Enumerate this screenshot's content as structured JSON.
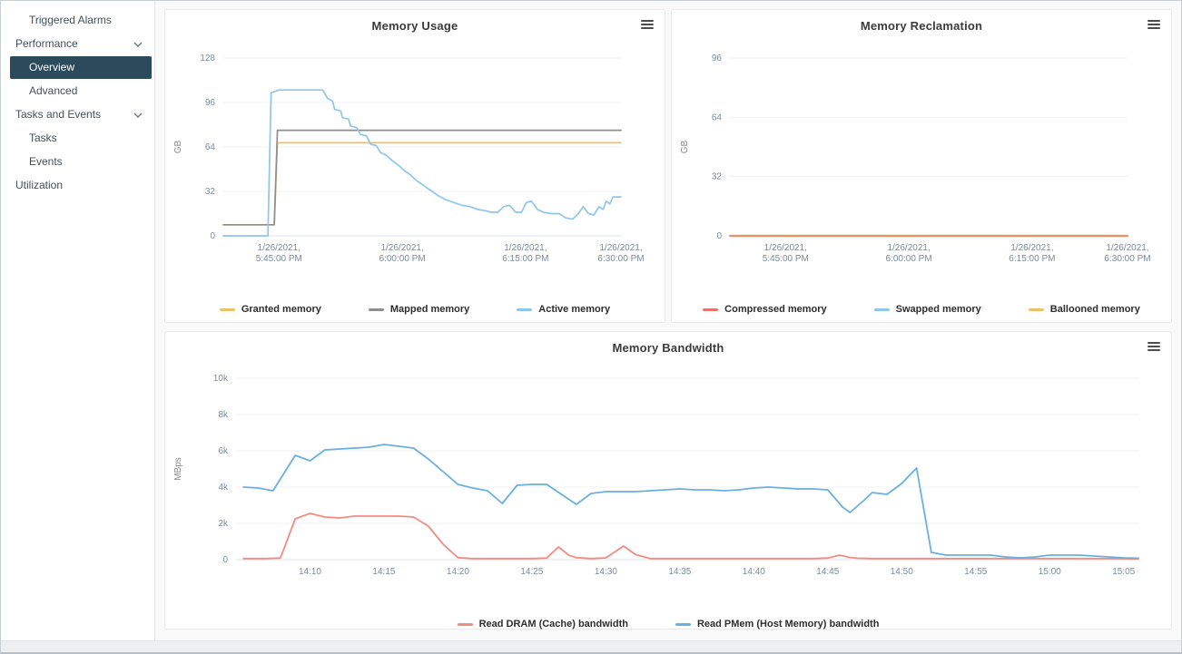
{
  "sidebar": {
    "items": [
      {
        "label": "Triggered Alarms",
        "indent": 1,
        "selected": false,
        "chevron": false
      },
      {
        "label": "Performance",
        "indent": 0,
        "selected": false,
        "chevron": true
      },
      {
        "label": "Overview",
        "indent": 1,
        "selected": true,
        "chevron": false
      },
      {
        "label": "Advanced",
        "indent": 1,
        "selected": false,
        "chevron": false
      },
      {
        "label": "Tasks and Events",
        "indent": 0,
        "selected": false,
        "chevron": true
      },
      {
        "label": "Tasks",
        "indent": 1,
        "selected": false,
        "chevron": false
      },
      {
        "label": "Events",
        "indent": 1,
        "selected": false,
        "chevron": false
      },
      {
        "label": "Utilization",
        "indent": 0,
        "selected": false,
        "chevron": false
      }
    ]
  },
  "colors": {
    "selected_nav_bg": "#2b4a5c",
    "granted_memory": "#edc066",
    "mapped_memory": "#8e8e8e",
    "active_memory": "#8fc6ed",
    "compressed_memory": "#e8756b",
    "swapped_memory": "#8fc6ed",
    "ballooned_memory": "#edc066",
    "dram_bandwidth": "#ef8d83",
    "pmem_bandwidth": "#6aafe0",
    "grid_line": "#f1f1f1",
    "baseline": "#dce3ea",
    "tick_text": "#7b8b9d"
  },
  "chart_data": [
    {
      "name": "memory-usage",
      "type": "line",
      "title": "Memory Usage",
      "xlabel": "",
      "ylabel": "GB",
      "ylim": [
        0,
        128
      ],
      "xlim": [
        0,
        1
      ],
      "grid": true,
      "legend_position": "bottom",
      "yticks": [
        {
          "v": 0,
          "label": "0"
        },
        {
          "v": 32,
          "label": "32"
        },
        {
          "v": 64,
          "label": "64"
        },
        {
          "v": 96,
          "label": "96"
        },
        {
          "v": 128,
          "label": "128"
        }
      ],
      "xticks": [
        {
          "pos": 0.14,
          "lines": [
            "1/26/2021,",
            "5:45:00 PM"
          ]
        },
        {
          "pos": 0.45,
          "lines": [
            "1/26/2021,",
            "6:00:00 PM"
          ]
        },
        {
          "pos": 0.76,
          "lines": [
            "1/26/2021,",
            "6:15:00 PM"
          ]
        },
        {
          "pos": 1.0,
          "lines": [
            "1/26/2021,",
            "6:30:00 PM"
          ]
        }
      ],
      "draw_order": [
        0,
        1,
        2
      ],
      "series": [
        {
          "name": "Granted memory",
          "color": "#edc066",
          "points": [
            [
              0,
              8
            ],
            [
              0.128,
              8
            ],
            [
              0.136,
              67
            ],
            [
              1,
              67
            ]
          ]
        },
        {
          "name": "Mapped memory",
          "color": "#8e8e8e",
          "points": [
            [
              0,
              8
            ],
            [
              0.128,
              8
            ],
            [
              0.136,
              76
            ],
            [
              1,
              76
            ]
          ]
        },
        {
          "name": "Active memory",
          "color": "#8fc6ed",
          "points": [
            [
              0,
              0
            ],
            [
              0.112,
              0
            ],
            [
              0.12,
              103
            ],
            [
              0.14,
              105
            ],
            [
              0.25,
              105
            ],
            [
              0.262,
              99
            ],
            [
              0.275,
              97
            ],
            [
              0.28,
              91
            ],
            [
              0.295,
              90
            ],
            [
              0.3,
              85
            ],
            [
              0.315,
              84
            ],
            [
              0.32,
              79
            ],
            [
              0.335,
              78
            ],
            [
              0.345,
              73
            ],
            [
              0.36,
              72
            ],
            [
              0.37,
              66
            ],
            [
              0.385,
              65
            ],
            [
              0.395,
              60
            ],
            [
              0.41,
              58
            ],
            [
              0.425,
              54
            ],
            [
              0.44,
              51
            ],
            [
              0.455,
              47
            ],
            [
              0.47,
              44
            ],
            [
              0.485,
              40
            ],
            [
              0.5,
              37
            ],
            [
              0.52,
              33
            ],
            [
              0.54,
              29
            ],
            [
              0.56,
              26
            ],
            [
              0.58,
              24
            ],
            [
              0.6,
              22
            ],
            [
              0.62,
              21
            ],
            [
              0.64,
              19
            ],
            [
              0.66,
              18
            ],
            [
              0.675,
              17
            ],
            [
              0.69,
              17
            ],
            [
              0.705,
              21
            ],
            [
              0.72,
              22
            ],
            [
              0.735,
              17
            ],
            [
              0.75,
              17
            ],
            [
              0.762,
              24
            ],
            [
              0.775,
              25
            ],
            [
              0.79,
              19
            ],
            [
              0.805,
              17
            ],
            [
              0.825,
              16
            ],
            [
              0.845,
              16
            ],
            [
              0.86,
              13
            ],
            [
              0.878,
              12
            ],
            [
              0.893,
              16
            ],
            [
              0.905,
              21
            ],
            [
              0.918,
              16
            ],
            [
              0.932,
              15
            ],
            [
              0.945,
              21
            ],
            [
              0.955,
              19
            ],
            [
              0.963,
              25
            ],
            [
              0.972,
              23
            ],
            [
              0.98,
              28
            ],
            [
              1,
              28
            ]
          ]
        }
      ]
    },
    {
      "name": "memory-reclamation",
      "type": "line",
      "title": "Memory Reclamation",
      "xlabel": "",
      "ylabel": "GB",
      "ylim": [
        0,
        96
      ],
      "xlim": [
        0,
        1
      ],
      "grid": true,
      "legend_position": "bottom",
      "yticks": [
        {
          "v": 0,
          "label": "0"
        },
        {
          "v": 32,
          "label": "32"
        },
        {
          "v": 64,
          "label": "64"
        },
        {
          "v": 96,
          "label": "96"
        }
      ],
      "xticks": [
        {
          "pos": 0.14,
          "lines": [
            "1/26/2021,",
            "5:45:00 PM"
          ]
        },
        {
          "pos": 0.45,
          "lines": [
            "1/26/2021,",
            "6:00:00 PM"
          ]
        },
        {
          "pos": 0.76,
          "lines": [
            "1/26/2021,",
            "6:15:00 PM"
          ]
        },
        {
          "pos": 1.0,
          "lines": [
            "1/26/2021,",
            "6:30:00 PM"
          ]
        }
      ],
      "draw_order": [
        1,
        2,
        0
      ],
      "series": [
        {
          "name": "Compressed memory",
          "color": "#e8756b",
          "points": [
            [
              0,
              0
            ],
            [
              1,
              0
            ]
          ]
        },
        {
          "name": "Swapped memory",
          "color": "#8fc6ed",
          "points": [
            [
              0,
              0
            ],
            [
              1,
              0
            ]
          ]
        },
        {
          "name": "Ballooned memory",
          "color": "#edc066",
          "points": [
            [
              0,
              0
            ],
            [
              1,
              0
            ]
          ]
        }
      ]
    },
    {
      "name": "memory-bandwidth",
      "type": "line",
      "title": "Memory Bandwidth",
      "xlabel": "",
      "ylabel": "MBps",
      "ylim": [
        0,
        10000
      ],
      "xlim": [
        0,
        61
      ],
      "grid": true,
      "legend_position": "bottom",
      "yticks": [
        {
          "v": 0,
          "label": "0"
        },
        {
          "v": 2000,
          "label": "2k"
        },
        {
          "v": 4000,
          "label": "4k"
        },
        {
          "v": 6000,
          "label": "6k"
        },
        {
          "v": 8000,
          "label": "8k"
        },
        {
          "v": 10000,
          "label": "10k"
        }
      ],
      "xticks": [
        {
          "pos": 5,
          "lines": [
            "14:10"
          ]
        },
        {
          "pos": 10,
          "lines": [
            "14:15"
          ]
        },
        {
          "pos": 15,
          "lines": [
            "14:20"
          ]
        },
        {
          "pos": 20,
          "lines": [
            "14:25"
          ]
        },
        {
          "pos": 25,
          "lines": [
            "14:30"
          ]
        },
        {
          "pos": 30,
          "lines": [
            "14:35"
          ]
        },
        {
          "pos": 35,
          "lines": [
            "14:40"
          ]
        },
        {
          "pos": 40,
          "lines": [
            "14:45"
          ]
        },
        {
          "pos": 45,
          "lines": [
            "14:50"
          ]
        },
        {
          "pos": 50,
          "lines": [
            "14:55"
          ]
        },
        {
          "pos": 55,
          "lines": [
            "15:00"
          ]
        },
        {
          "pos": 60,
          "lines": [
            "15:05"
          ]
        }
      ],
      "draw_order": [
        0,
        1
      ],
      "series": [
        {
          "name": "Read DRAM (Cache) bandwidth",
          "color": "#ef8d83",
          "points": [
            [
              0.5,
              60
            ],
            [
              2,
              60
            ],
            [
              3,
              90
            ],
            [
              4,
              2250
            ],
            [
              5,
              2550
            ],
            [
              6,
              2350
            ],
            [
              7,
              2300
            ],
            [
              8,
              2400
            ],
            [
              9,
              2400
            ],
            [
              10,
              2400
            ],
            [
              11,
              2400
            ],
            [
              12,
              2350
            ],
            [
              13,
              1850
            ],
            [
              14,
              850
            ],
            [
              15,
              110
            ],
            [
              16,
              60
            ],
            [
              17,
              60
            ],
            [
              18,
              60
            ],
            [
              19,
              60
            ],
            [
              20,
              60
            ],
            [
              21,
              90
            ],
            [
              21.8,
              700
            ],
            [
              22.5,
              240
            ],
            [
              23,
              110
            ],
            [
              24,
              60
            ],
            [
              25,
              100
            ],
            [
              26.2,
              750
            ],
            [
              27,
              280
            ],
            [
              28,
              60
            ],
            [
              29,
              60
            ],
            [
              30,
              60
            ],
            [
              31,
              60
            ],
            [
              32,
              60
            ],
            [
              33,
              60
            ],
            [
              34,
              60
            ],
            [
              35,
              60
            ],
            [
              36,
              60
            ],
            [
              37,
              60
            ],
            [
              38,
              60
            ],
            [
              39,
              60
            ],
            [
              40,
              90
            ],
            [
              40.8,
              250
            ],
            [
              41.5,
              120
            ],
            [
              42,
              80
            ],
            [
              43,
              60
            ],
            [
              44,
              60
            ],
            [
              45,
              60
            ],
            [
              46,
              60
            ],
            [
              47,
              60
            ],
            [
              48,
              60
            ],
            [
              49,
              60
            ],
            [
              50,
              60
            ],
            [
              51,
              60
            ],
            [
              52,
              60
            ],
            [
              53,
              60
            ],
            [
              54,
              60
            ],
            [
              55,
              60
            ],
            [
              56,
              60
            ],
            [
              57,
              60
            ],
            [
              58,
              60
            ],
            [
              59,
              60
            ],
            [
              60,
              50
            ],
            [
              61,
              40
            ]
          ]
        },
        {
          "name": "Read PMem (Host Memory) bandwidth",
          "color": "#6aafe0",
          "points": [
            [
              0.5,
              4000
            ],
            [
              1.5,
              3950
            ],
            [
              2.5,
              3800
            ],
            [
              4,
              5750
            ],
            [
              5,
              5450
            ],
            [
              6,
              6050
            ],
            [
              7,
              6100
            ],
            [
              8,
              6150
            ],
            [
              9,
              6200
            ],
            [
              10,
              6350
            ],
            [
              11,
              6250
            ],
            [
              12,
              6150
            ],
            [
              13,
              5550
            ],
            [
              14,
              4850
            ],
            [
              15,
              4150
            ],
            [
              16,
              3950
            ],
            [
              17,
              3800
            ],
            [
              18,
              3100
            ],
            [
              19,
              4100
            ],
            [
              20,
              4150
            ],
            [
              21,
              4150
            ],
            [
              22,
              3600
            ],
            [
              23,
              3050
            ],
            [
              24,
              3650
            ],
            [
              25,
              3750
            ],
            [
              26,
              3750
            ],
            [
              27,
              3750
            ],
            [
              28,
              3800
            ],
            [
              29,
              3850
            ],
            [
              30,
              3900
            ],
            [
              31,
              3850
            ],
            [
              32,
              3850
            ],
            [
              33,
              3800
            ],
            [
              34,
              3850
            ],
            [
              35,
              3950
            ],
            [
              36,
              4000
            ],
            [
              37,
              3950
            ],
            [
              38,
              3900
            ],
            [
              39,
              3900
            ],
            [
              40,
              3850
            ],
            [
              41,
              2900
            ],
            [
              41.5,
              2600
            ],
            [
              42.5,
              3300
            ],
            [
              43,
              3700
            ],
            [
              44,
              3600
            ],
            [
              45,
              4200
            ],
            [
              46,
              5050
            ],
            [
              47,
              400
            ],
            [
              48,
              250
            ],
            [
              49,
              250
            ],
            [
              50,
              250
            ],
            [
              51,
              250
            ],
            [
              52,
              150
            ],
            [
              53,
              100
            ],
            [
              54,
              150
            ],
            [
              55,
              250
            ],
            [
              56,
              250
            ],
            [
              57,
              250
            ],
            [
              58,
              200
            ],
            [
              59,
              150
            ],
            [
              60,
              100
            ],
            [
              61,
              80
            ]
          ]
        }
      ]
    }
  ]
}
